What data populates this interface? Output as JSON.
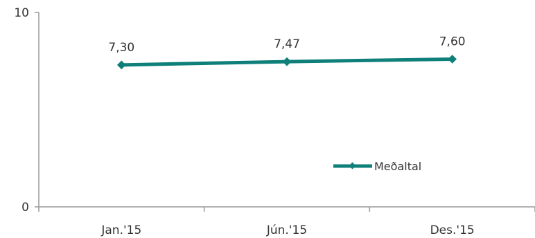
{
  "chart_data": {
    "type": "line",
    "categories": [
      "Jan.'15",
      "Jún.'15",
      "Des.'15"
    ],
    "series": [
      {
        "name": "Meðaltal",
        "values": [
          7.3,
          7.47,
          7.6
        ],
        "value_labels": [
          "7,30",
          "7,47",
          "7,60"
        ],
        "color": "#0f7f7a"
      }
    ],
    "ylim": [
      0,
      10
    ],
    "y_ticks": [
      {
        "value": 0,
        "label": "0"
      },
      {
        "value": 10,
        "label": "10"
      }
    ],
    "grid": false,
    "legend_position": "bottom-right inside plot",
    "axis_color": "#999999"
  }
}
